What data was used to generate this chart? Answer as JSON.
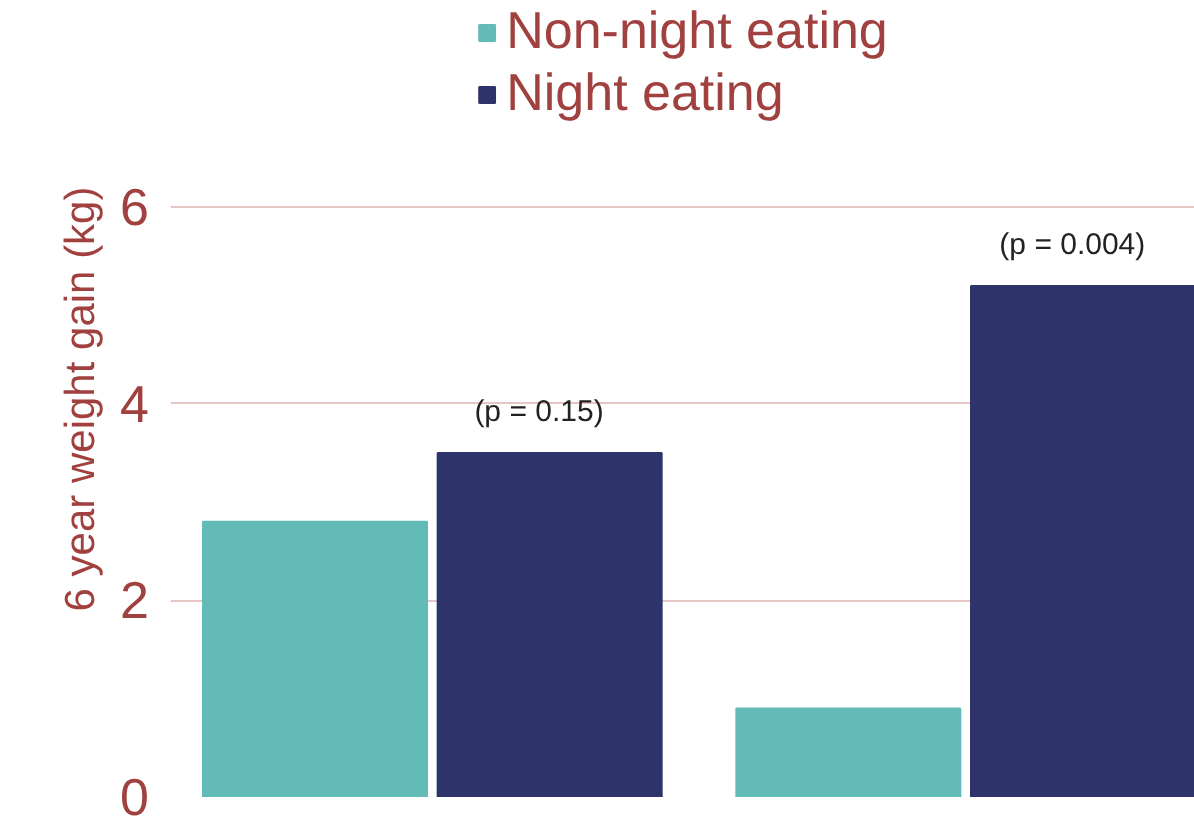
{
  "chart_data": {
    "type": "bar",
    "ylabel": "6 year weight gain (kg)",
    "categories": [
      null,
      null
    ],
    "series": [
      {
        "name": "Non-night eating",
        "color": "#63bbb8",
        "values": [
          2.8,
          0.9
        ]
      },
      {
        "name": "Night eating",
        "color": "#2f336b",
        "values": [
          3.5,
          5.2
        ]
      }
    ],
    "ylim": [
      0,
      8.1
    ],
    "yticks": [
      0,
      2,
      4,
      6
    ],
    "grid": "y",
    "legend": "top",
    "tick_labels": "y",
    "annotations": [
      {
        "text": "(p = 0.15)",
        "y": 3.5
      },
      {
        "text": "(p = 0.004)",
        "y": 5.2
      }
    ]
  }
}
